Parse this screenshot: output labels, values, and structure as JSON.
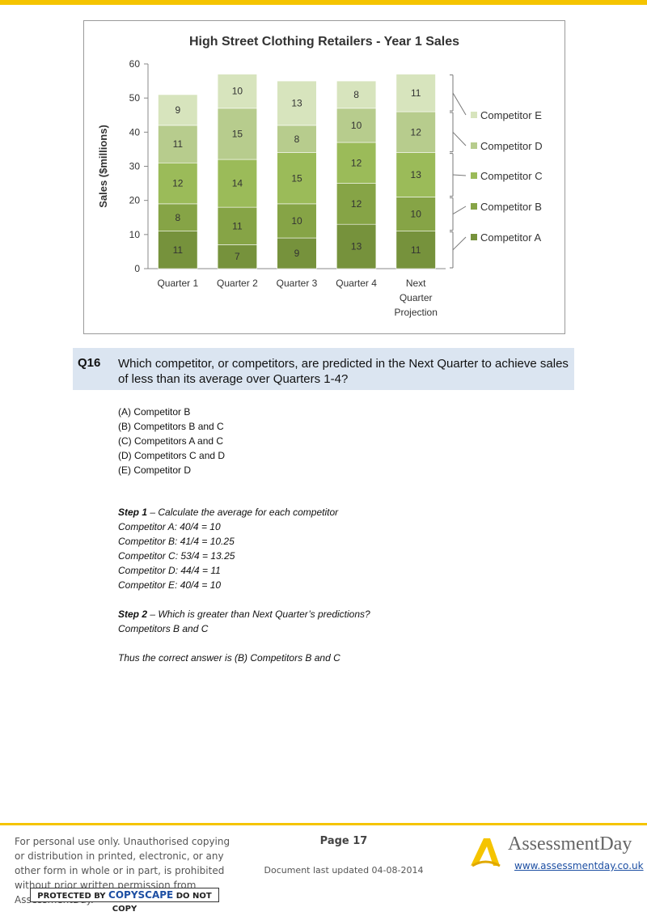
{
  "chart_data": {
    "type": "bar",
    "stacked": true,
    "title": "High Street Clothing Retailers - Year 1 Sales",
    "ylabel": "Sales ($millions)",
    "xlabel": "",
    "ylim": [
      0,
      60
    ],
    "yticks": [
      0,
      10,
      20,
      30,
      40,
      50,
      60
    ],
    "categories": [
      "Quarter 1",
      "Quarter 2",
      "Quarter 3",
      "Quarter 4",
      "Next Quarter Projection"
    ],
    "series": [
      {
        "name": "Competitor A",
        "values": [
          11,
          7,
          9,
          13,
          11
        ],
        "color": "#76923c"
      },
      {
        "name": "Competitor B",
        "values": [
          8,
          11,
          10,
          12,
          10
        ],
        "color": "#86a446"
      },
      {
        "name": "Competitor C",
        "values": [
          12,
          14,
          15,
          12,
          13
        ],
        "color": "#9bbb59"
      },
      {
        "name": "Competitor D",
        "values": [
          11,
          15,
          8,
          10,
          12
        ],
        "color": "#b7cc8d"
      },
      {
        "name": "Competitor E",
        "values": [
          9,
          10,
          13,
          8,
          11
        ],
        "color": "#d7e4bd"
      }
    ],
    "legend": "right",
    "grid": false
  },
  "question": {
    "number": "Q16",
    "text": "Which competitor, or competitors, are predicted in the Next Quarter to achieve sales of less than its average over Quarters 1-4?"
  },
  "options": [
    "(A) Competitor B",
    "(B) Competitors B and C",
    "(C) Competitors A and C",
    "(D) Competitors C and D",
    "(E) Competitor D"
  ],
  "explanation": {
    "step1_label": "Step 1",
    "step1_text": " – Calculate the average for each competitor",
    "averages": [
      "Competitor A: 40/4 = 10",
      "Competitor B: 41/4 = 10.25",
      "Competitor C: 53/4 = 13.25",
      "Competitor D: 44/4 = 11",
      "Competitor E: 40/4 = 10"
    ],
    "step2_label": "Step 2",
    "step2_text": " – Which is greater than Next Quarter’s predictions?",
    "step2_answer": "Competitors B and C",
    "conclusion": "Thus the correct answer is (B) Competitors B and C"
  },
  "footer": {
    "disclaimer": "For personal use only. Unauthorised copying or distribution in printed, electronic, or any other form in whole or in part, is prohibited without prior written permission from AssessmentDay.",
    "copyscape_pre": "PROTECTED BY ",
    "copyscape_brand": "COPYSCAPE",
    "copyscape_post": " DO NOT COPY",
    "page": "Page 17",
    "updated": "Document last updated 04-08-2014",
    "brand": "AssessmentDay",
    "url": "www.assessmentday.co.uk"
  },
  "colors": {
    "accent": "#f5c400",
    "question_band": "#dbe5f1",
    "link": "#1d4fa3"
  }
}
